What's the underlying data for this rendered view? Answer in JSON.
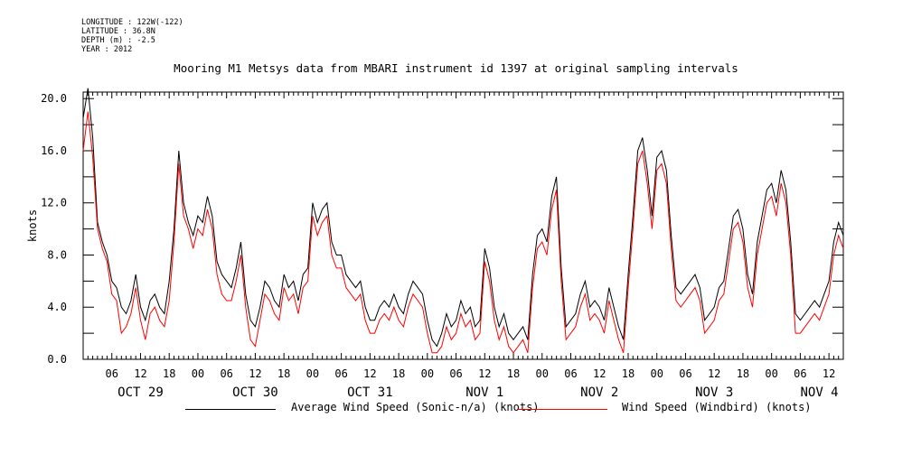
{
  "metadata": {
    "longitude": "LONGITUDE : 122W(-122)",
    "latitude": "LATITUDE : 36.8N",
    "depth": "DEPTH (m) : -2.5",
    "year": "YEAR : 2012"
  },
  "colors": {
    "series1": "#000000",
    "series2": "#ff0000"
  },
  "chart_data": {
    "type": "line",
    "title": "Mooring M1 Metsys data from MBARI instrument id 1397 at original sampling intervals",
    "ylabel": "knots",
    "xlabel": "",
    "ylim": [
      0,
      20.5
    ],
    "xlim_hours": [
      0,
      159
    ],
    "x_start": "2012-10-29T00:00",
    "x_end": "2012-11-04T15:00",
    "yticks": [
      "0.0",
      "4.0",
      "8.0",
      "12.0",
      "16.0",
      "20.0"
    ],
    "xticks_hours": [
      "06",
      "12",
      "18",
      "00",
      "06",
      "12",
      "18",
      "00",
      "06",
      "12",
      "18",
      "00",
      "06",
      "12",
      "18",
      "00",
      "06",
      "12",
      "18",
      "00",
      "06",
      "12",
      "18",
      "00",
      "06",
      "12"
    ],
    "date_labels": [
      "OCT 29",
      "OCT 30",
      "OCT 31",
      "NOV  1",
      "NOV  2",
      "NOV  3",
      "NOV  4"
    ],
    "grid": false,
    "legend": "bottom",
    "series": [
      {
        "name": "Average Wind Speed (Sonic-n/a) (knots)",
        "x": [
          0,
          1,
          2,
          3,
          4,
          5,
          6,
          7,
          8,
          9,
          10,
          11,
          12,
          13,
          14,
          15,
          16,
          17,
          18,
          19,
          20,
          21,
          22,
          23,
          24,
          25,
          26,
          27,
          28,
          29,
          30,
          31,
          32,
          33,
          34,
          35,
          36,
          37,
          38,
          39,
          40,
          41,
          42,
          43,
          44,
          45,
          46,
          47,
          48,
          49,
          50,
          51,
          52,
          53,
          54,
          55,
          56,
          57,
          58,
          59,
          60,
          61,
          62,
          63,
          64,
          65,
          66,
          67,
          68,
          69,
          70,
          71,
          72,
          73,
          74,
          75,
          76,
          77,
          78,
          79,
          80,
          81,
          82,
          83,
          84,
          85,
          86,
          87,
          88,
          89,
          90,
          91,
          92,
          93,
          94,
          95,
          96,
          97,
          98,
          99,
          100,
          101,
          102,
          103,
          104,
          105,
          106,
          107,
          108,
          109,
          110,
          111,
          112,
          113,
          114,
          115,
          116,
          117,
          118,
          119,
          120,
          121,
          122,
          123,
          124,
          125,
          126,
          127,
          128,
          129,
          130,
          131,
          132,
          133,
          134,
          135,
          136,
          137,
          138,
          139,
          140,
          141,
          142,
          143,
          144,
          145,
          146,
          147,
          148,
          149,
          150,
          151,
          152,
          153,
          154,
          155,
          156,
          157,
          158,
          159
        ],
        "values": [
          18.5,
          20.8,
          17.0,
          10.5,
          9.0,
          8.0,
          6.0,
          5.5,
          4.0,
          3.5,
          4.5,
          6.5,
          4.0,
          3.0,
          4.5,
          5.0,
          4.0,
          3.5,
          6.0,
          10.0,
          16.0,
          12.0,
          10.5,
          9.5,
          11.0,
          10.5,
          12.5,
          11.0,
          7.5,
          6.5,
          6.0,
          5.5,
          7.0,
          9.0,
          5.0,
          3.0,
          2.5,
          4.0,
          6.0,
          5.5,
          4.5,
          4.0,
          6.5,
          5.5,
          6.0,
          4.5,
          6.5,
          7.0,
          12.0,
          10.5,
          11.5,
          12.0,
          9.0,
          8.0,
          8.0,
          6.5,
          6.0,
          5.5,
          6.0,
          4.0,
          3.0,
          3.0,
          4.0,
          4.5,
          4.0,
          5.0,
          4.0,
          3.5,
          5.0,
          6.0,
          5.5,
          5.0,
          3.0,
          1.5,
          1.0,
          2.0,
          3.5,
          2.5,
          3.0,
          4.5,
          3.5,
          4.0,
          2.5,
          3.0,
          8.5,
          7.0,
          4.0,
          2.5,
          3.5,
          2.0,
          1.5,
          2.0,
          2.5,
          1.5,
          6.5,
          9.5,
          10.0,
          9.0,
          12.5,
          14.0,
          7.0,
          2.5,
          3.0,
          3.5,
          5.0,
          6.0,
          4.0,
          4.5,
          4.0,
          3.0,
          5.5,
          4.0,
          2.5,
          1.5,
          6.5,
          11.0,
          16.0,
          17.0,
          14.5,
          11.0,
          15.5,
          16.0,
          14.5,
          9.5,
          5.5,
          5.0,
          5.5,
          6.0,
          6.5,
          5.5,
          3.0,
          3.5,
          4.0,
          5.5,
          6.0,
          8.5,
          11.0,
          11.5,
          10.0,
          6.5,
          5.0,
          9.0,
          11.0,
          13.0,
          13.5,
          12.0,
          14.5,
          13.0,
          9.0,
          3.5,
          3.0,
          3.5,
          4.0,
          4.5,
          4.0,
          5.0,
          6.0,
          9.0,
          10.5,
          9.5
        ]
      },
      {
        "name": "Wind Speed (Windbird) (knots)",
        "x": [
          0,
          1,
          2,
          3,
          4,
          5,
          6,
          7,
          8,
          9,
          10,
          11,
          12,
          13,
          14,
          15,
          16,
          17,
          18,
          19,
          20,
          21,
          22,
          23,
          24,
          25,
          26,
          27,
          28,
          29,
          30,
          31,
          32,
          33,
          34,
          35,
          36,
          37,
          38,
          39,
          40,
          41,
          42,
          43,
          44,
          45,
          46,
          47,
          48,
          49,
          50,
          51,
          52,
          53,
          54,
          55,
          56,
          57,
          58,
          59,
          60,
          61,
          62,
          63,
          64,
          65,
          66,
          67,
          68,
          69,
          70,
          71,
          72,
          73,
          74,
          75,
          76,
          77,
          78,
          79,
          80,
          81,
          82,
          83,
          84,
          85,
          86,
          87,
          88,
          89,
          90,
          91,
          92,
          93,
          94,
          95,
          96,
          97,
          98,
          99,
          100,
          101,
          102,
          103,
          104,
          105,
          106,
          107,
          108,
          109,
          110,
          111,
          112,
          113,
          114,
          115,
          116,
          117,
          118,
          119,
          120,
          121,
          122,
          123,
          124,
          125,
          126,
          127,
          128,
          129,
          130,
          131,
          132,
          133,
          134,
          135,
          136,
          137,
          138,
          139,
          140,
          141,
          142,
          143,
          144,
          145,
          146,
          147,
          148,
          149,
          150,
          151,
          152,
          153,
          154,
          155,
          156,
          157,
          158,
          159
        ],
        "values": [
          16.0,
          19.0,
          15.5,
          10.0,
          8.5,
          7.5,
          5.0,
          4.5,
          2.0,
          2.5,
          3.5,
          5.5,
          3.0,
          1.5,
          3.5,
          4.0,
          3.0,
          2.5,
          4.5,
          9.0,
          15.0,
          11.0,
          10.0,
          8.5,
          10.0,
          9.5,
          11.5,
          10.0,
          6.5,
          5.0,
          4.5,
          4.5,
          6.0,
          8.0,
          4.0,
          1.5,
          1.0,
          3.0,
          5.0,
          4.5,
          3.5,
          3.0,
          5.5,
          4.5,
          5.0,
          3.5,
          5.5,
          6.0,
          11.0,
          9.5,
          10.5,
          11.0,
          8.0,
          7.0,
          7.0,
          5.5,
          5.0,
          4.5,
          5.0,
          3.0,
          2.0,
          2.0,
          3.0,
          3.5,
          3.0,
          4.0,
          3.0,
          2.5,
          4.0,
          5.0,
          4.5,
          4.0,
          2.0,
          0.5,
          0.5,
          1.0,
          2.5,
          1.5,
          2.0,
          3.5,
          2.5,
          3.0,
          1.5,
          2.0,
          7.5,
          6.0,
          3.0,
          1.5,
          2.5,
          1.0,
          0.5,
          1.0,
          1.5,
          0.5,
          5.5,
          8.5,
          9.0,
          8.0,
          11.5,
          13.0,
          6.0,
          1.5,
          2.0,
          2.5,
          4.0,
          5.0,
          3.0,
          3.5,
          3.0,
          2.0,
          4.5,
          3.0,
          1.5,
          0.5,
          5.5,
          10.0,
          15.0,
          16.0,
          13.5,
          10.0,
          14.5,
          15.0,
          13.5,
          8.5,
          4.5,
          4.0,
          4.5,
          5.0,
          5.5,
          4.5,
          2.0,
          2.5,
          3.0,
          4.5,
          5.0,
          7.5,
          10.0,
          10.5,
          9.0,
          5.5,
          4.0,
          8.0,
          10.0,
          12.0,
          12.5,
          11.0,
          13.5,
          12.0,
          8.0,
          2.0,
          2.0,
          2.5,
          3.0,
          3.5,
          3.0,
          4.0,
          5.0,
          8.0,
          9.5,
          8.5
        ]
      }
    ]
  }
}
